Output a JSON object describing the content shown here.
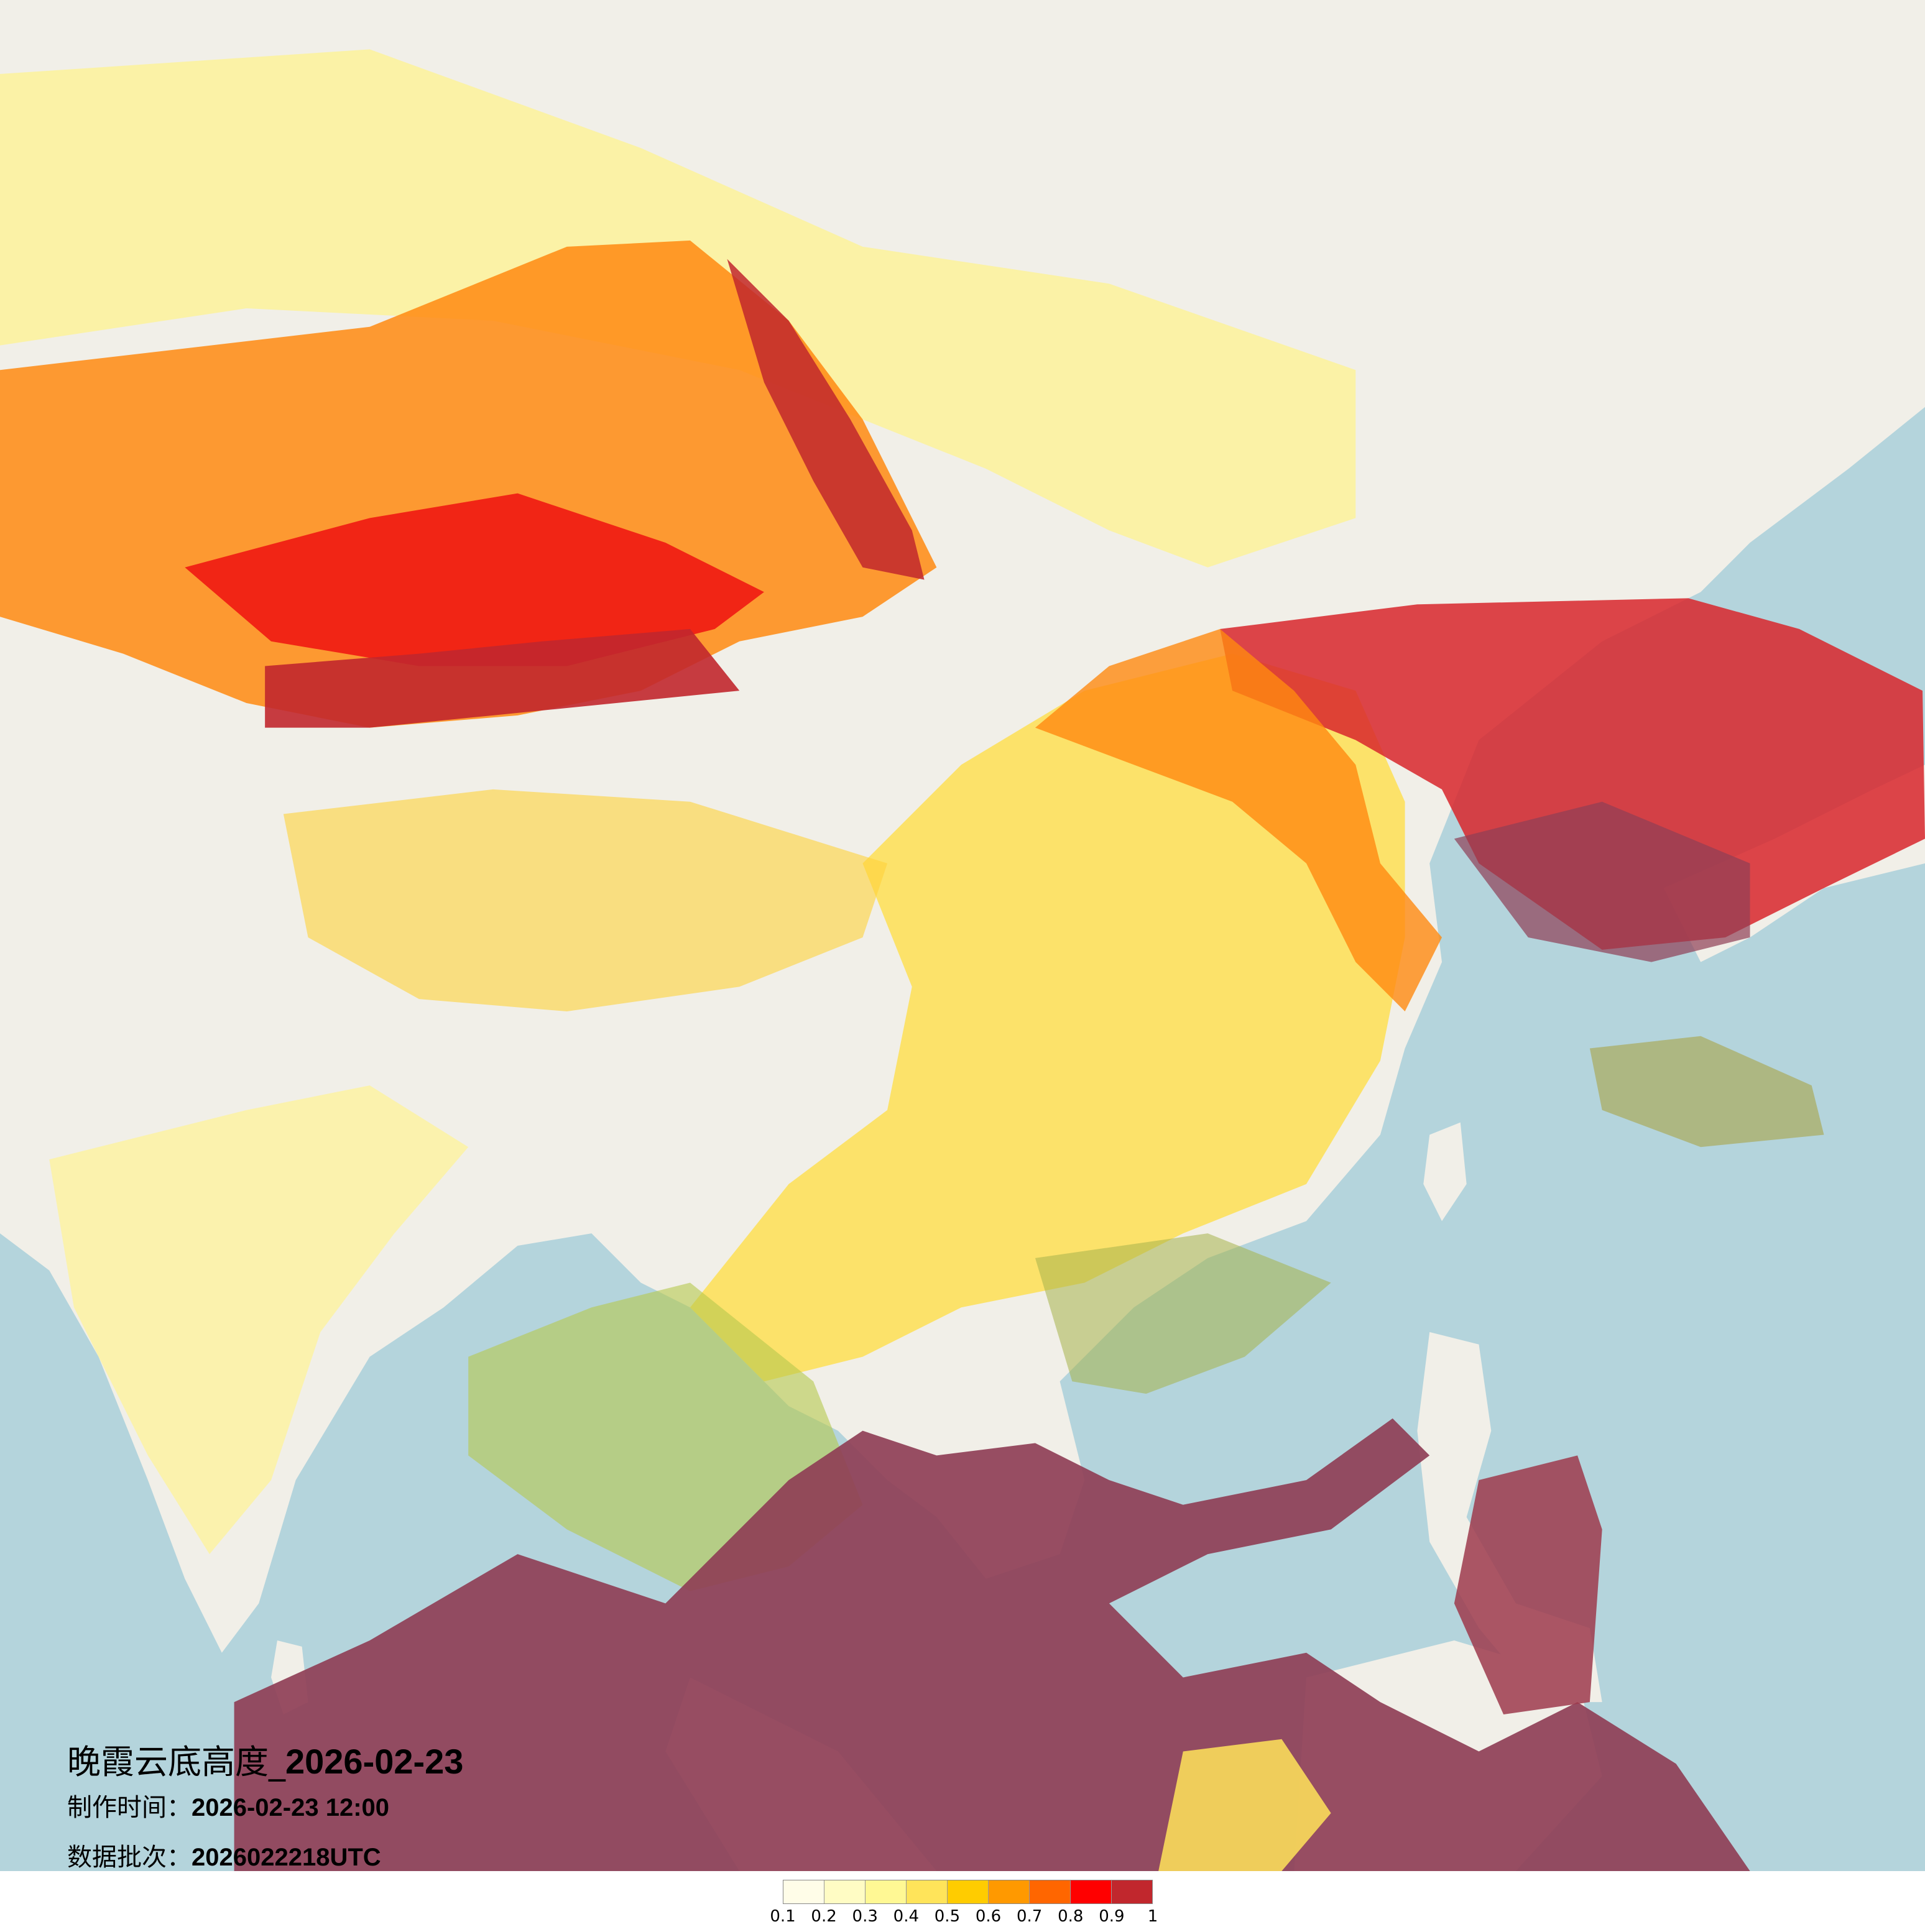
{
  "map": {
    "title_prefix": "晚霞云底高度_",
    "title_date": "2026-02-23",
    "production_label": "制作时间：",
    "production_time": "2026-02-23 12:00",
    "batch_label": "数据批次：",
    "batch_value": "2026022218UTC",
    "colors": {
      "land": "#f1efe8",
      "sea": "#b4d4dc"
    }
  },
  "legend": {
    "labels": [
      "0.1",
      "0.2",
      "0.3",
      "0.4",
      "0.5",
      "0.6",
      "0.7",
      "0.8",
      "0.9",
      "1"
    ],
    "colors": [
      "#fffde8",
      "#fffcc4",
      "#fff894",
      "#ffe45a",
      "#ffcc00",
      "#ff9900",
      "#ff6600",
      "#ff0000",
      "#c1272d"
    ]
  }
}
